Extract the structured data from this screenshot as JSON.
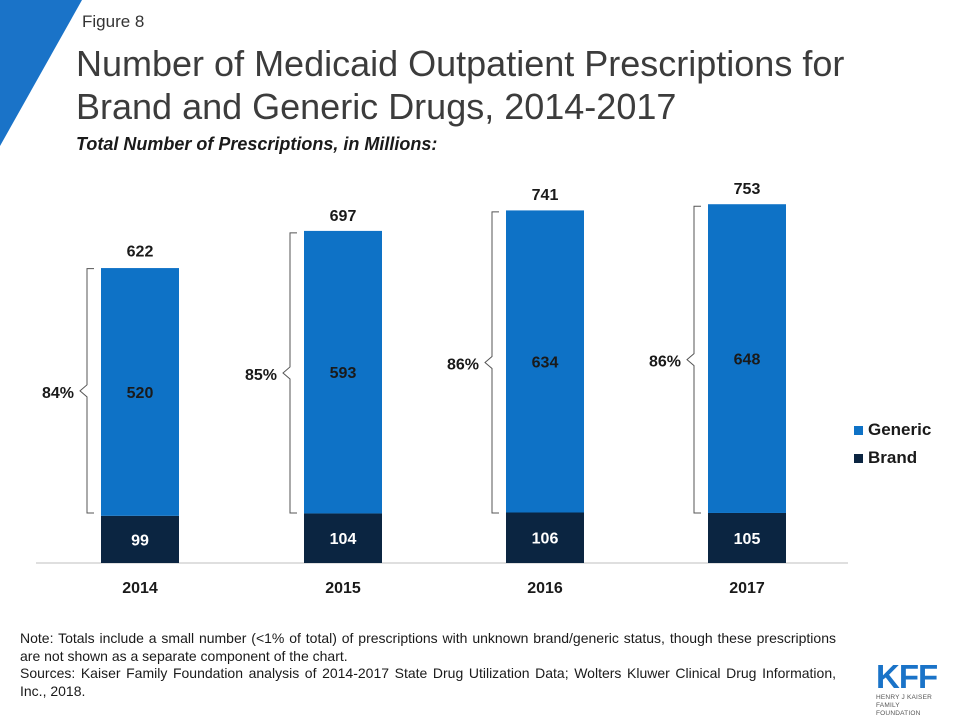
{
  "header": {
    "figure_label": "Figure 8",
    "title": "Number of Medicaid Outpatient Prescriptions for Brand and Generic Drugs, 2014-2017",
    "subtitle": "Total Number of Prescriptions, in Millions:"
  },
  "chart_data": {
    "type": "bar",
    "stacked": true,
    "title": "Number of Medicaid Outpatient Prescriptions for Brand and Generic Drugs, 2014-2017",
    "subtitle": "Total Number of Prescriptions, in Millions:",
    "categories": [
      "2014",
      "2015",
      "2016",
      "2017"
    ],
    "series": [
      {
        "name": "Brand",
        "values": [
          99,
          104,
          106,
          105
        ],
        "color": "#0b2541"
      },
      {
        "name": "Generic",
        "values": [
          520,
          593,
          634,
          648
        ],
        "color": "#0e72c6"
      }
    ],
    "totals": [
      622,
      697,
      741,
      753
    ],
    "generic_share_labels": [
      "84%",
      "85%",
      "86%",
      "86%"
    ],
    "ylim": [
      0,
      850
    ],
    "grid": false,
    "legend_position": "right"
  },
  "legend": [
    {
      "label": "Generic",
      "color": "#0e72c6"
    },
    {
      "label": "Brand",
      "color": "#0b2541"
    }
  ],
  "notes": {
    "note": "Note: Totals include a small number (<1% of total) of prescriptions with unknown brand/generic status, though these prescriptions are not shown as a separate component of the chart.",
    "sources": "Sources: Kaiser Family Foundation analysis of 2014-2017 State Drug Utilization Data; Wolters Kluwer Clinical Drug Information, Inc., 2018."
  },
  "logo": {
    "mark": "KFF",
    "line1": "HENRY J KAISER",
    "line2": "FAMILY FOUNDATION"
  },
  "colors": {
    "accent": "#0e72c6",
    "dark": "#0b2541",
    "corner": "#1a73c8"
  }
}
